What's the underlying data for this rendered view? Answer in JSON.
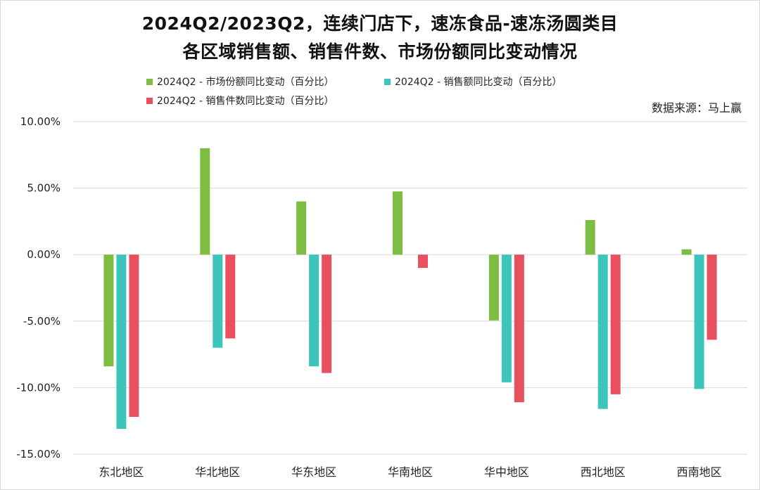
{
  "title_line1": "2024Q2/2023Q2，连续门店下，速冻食品-速冻汤圆类目",
  "title_line2": "各区域销售额、销售件数、市场份额同比变动情况",
  "source": "数据来源：马上赢",
  "chart_data": {
    "type": "bar",
    "categories": [
      "东北地区",
      "华北地区",
      "华东地区",
      "华南地区",
      "华中地区",
      "西北地区",
      "西南地区"
    ],
    "series": [
      {
        "name": "2024Q2 - 市场份额同比变动（百分比）",
        "color": "#7dbd42",
        "values": [
          -8.4,
          8.0,
          4.0,
          4.75,
          -4.95,
          2.6,
          0.4
        ]
      },
      {
        "name": "2024Q2 - 销售额同比变动（百分比）",
        "color": "#3dc5bb",
        "values": [
          -13.1,
          -7.0,
          -8.4,
          0,
          -9.6,
          -11.6,
          -10.1
        ]
      },
      {
        "name": "2024Q2 - 销售件数同比变动（百分比）",
        "color": "#e8505f",
        "values": [
          -12.2,
          -6.3,
          -8.9,
          -1.0,
          -11.1,
          -10.5,
          -6.4
        ]
      }
    ],
    "ylim": [
      -15,
      10
    ],
    "ticks": [
      "10.00%",
      "5.00%",
      "0.00%",
      "-5.00%",
      "-10.00%",
      "-15.00%"
    ],
    "tick_values": [
      10,
      5,
      0,
      -5,
      -10,
      -15
    ],
    "grid": true,
    "legend": "top"
  }
}
